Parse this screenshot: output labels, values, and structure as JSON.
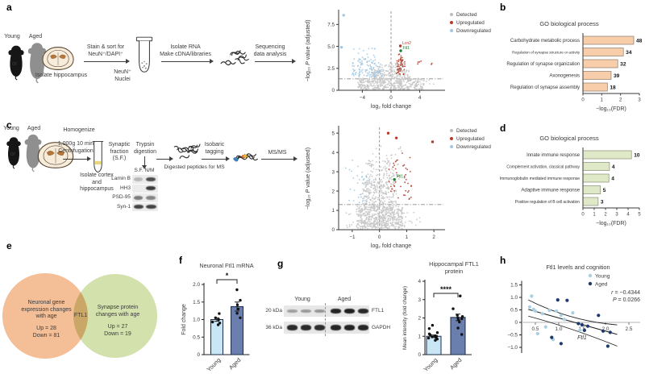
{
  "colors": {
    "detected": "#bdbdbd",
    "upregulated": "#b63b2a",
    "downregulated": "#9fc8e3",
    "highlight_green": "#1e7d34",
    "go_orange_fill": "#f8cda9",
    "go_green_fill": "#dfe9c8",
    "young_bar": "#c9e6f5",
    "aged_bar": "#6b7fae",
    "venn_left": "#f3b98e",
    "venn_right": "#cfdfa5"
  },
  "panel_a": {
    "label": "a",
    "young": "Young",
    "aged": "Aged",
    "or": "or",
    "isolate": "Isolate hippocampus",
    "sort_line1": "Stain & sort for",
    "sort_line2": "NeuN⁺/DAPI⁺",
    "nuclei_line1": "NeuN⁺",
    "nuclei_line2": "Nuclei",
    "rna_line1": "Isolate RNA",
    "rna_line2": "Make cDNA/libraries",
    "seq_line1": "Sequencing",
    "seq_line2": "data analysis"
  },
  "panel_b": {
    "label": "b"
  },
  "panel_c": {
    "label": "c",
    "young": "Young",
    "aged": "Aged",
    "or": "or",
    "homogenize": "Homogenize",
    "centrifuge_line1": "1,000g 10 min",
    "centrifuge_line2": "Centrifugation",
    "isolate_line1": "Isolate cortex",
    "isolate_line2": "and",
    "isolate_line3": "hippocampus",
    "synaptic_line1": "Synaptic",
    "synaptic_line2": "fraction",
    "synaptic_line3": "(S.F.)",
    "trypsin_line1": "Trypsin",
    "trypsin_line2": "digestion",
    "blot_header": "S.F. N/M",
    "blot_rows": [
      "Lamin B",
      "HH3",
      "PSD-95",
      "Syn-1"
    ],
    "digested": "Digested peptides for MS",
    "isobaric_line1": "Isobaric",
    "isobaric_line2": "tagging",
    "msms": "MS/MS"
  },
  "panel_d": {
    "label": "d"
  },
  "panel_e": {
    "label": "e"
  },
  "panel_f": {
    "label": "f"
  },
  "panel_g": {
    "label": "g",
    "blot": {
      "young": "Young",
      "aged": "Aged",
      "kda_1": "20 kDa",
      "kda_2": "36 kDa",
      "target_1": "FTL1",
      "target_2": "GAPDH"
    }
  },
  "panel_h": {
    "label": "h"
  },
  "chart_data": [
    {
      "id": "volcano-a",
      "type": "scatter",
      "variant": "volcano",
      "xlabel_parts": [
        "log₂ fold change"
      ],
      "ylabel_parts": [
        "−log₁₀ ",
        "P",
        " value (adjusted)"
      ],
      "xlim": [
        -7.3,
        7.3
      ],
      "ylim": [
        0,
        9.0
      ],
      "xticks": [
        -4,
        0,
        4
      ],
      "xtick_labels": [
        "−4",
        "0",
        "4"
      ],
      "yticks": [
        0,
        2.5,
        5,
        7.5
      ],
      "ytick_labels": [
        "0",
        "2.5",
        "5.0",
        "7.5"
      ],
      "vline": 0,
      "hline": 1.3,
      "legend": [
        {
          "label": "Detected",
          "color": "#bdbdbd"
        },
        {
          "label": "Upregulated",
          "color": "#b63b2a"
        },
        {
          "label": "Downregulated",
          "color": "#9fc8e3"
        }
      ],
      "highlights": [
        {
          "label": "Lcn2",
          "x": 1.3,
          "y": 5.05,
          "color": "#b63b2a"
        },
        {
          "label": "Ftl1",
          "x": 1.35,
          "y": 4.5,
          "color": "#1e7d34"
        },
        {
          "label": "",
          "x": -6.6,
          "y": 8.55,
          "color": "#9fc8e3"
        },
        {
          "label": "",
          "x": -6.9,
          "y": 4.9,
          "color": "#9fc8e3"
        }
      ],
      "clusters": [
        {
          "n": 420,
          "x": [
            -4.6,
            4.6
          ],
          "y": [
            0.06,
            1.35
          ],
          "color": "#c6c6c6",
          "seed": 1
        },
        {
          "n": 150,
          "x": [
            -2.7,
            2.7
          ],
          "y": [
            1.3,
            2.35
          ],
          "color": "#c6c6c6",
          "seed": 2
        },
        {
          "n": 45,
          "x": [
            -1.8,
            1.8
          ],
          "y": [
            2.3,
            3.1
          ],
          "color": "#c6c6c6",
          "seed": 3
        },
        {
          "n": 8,
          "x": [
            2.8,
            6.2
          ],
          "y": [
            0.4,
            1.3
          ],
          "color": "#c6c6c6",
          "seed": 4
        },
        {
          "n": 105,
          "x": [
            -5.5,
            -1.3
          ],
          "y": [
            1.5,
            3.6
          ],
          "color": "#9fc8e3",
          "seed": 5
        },
        {
          "n": 16,
          "x": [
            -5.2,
            -2.2
          ],
          "y": [
            3.5,
            4.8
          ],
          "color": "#9fc8e3",
          "seed": 6
        },
        {
          "n": 46,
          "x": [
            0.75,
            1.95
          ],
          "y": [
            1.8,
            3.5
          ],
          "color": "#b63b2a",
          "seed": 7
        },
        {
          "n": 7,
          "x": [
            0.95,
            1.7
          ],
          "y": [
            3.5,
            4.4
          ],
          "color": "#b63b2a",
          "seed": 8
        },
        {
          "n": 6,
          "x": [
            3.3,
            6.6
          ],
          "y": [
            2.3,
            3.4
          ],
          "color": "#b63b2a",
          "seed": 9
        }
      ]
    },
    {
      "id": "go-b",
      "type": "bar",
      "orientation": "horizontal",
      "title": "GO biological process",
      "categories": [
        "Carbohydrate metabolic process",
        "Regulation of synapse structure or activity",
        "Regulation of synapse organization",
        "Axonogenesis",
        "Regulation of synapse assembly"
      ],
      "values": [
        2.7,
        2.15,
        1.85,
        1.5,
        1.3
      ],
      "counts": [
        48,
        34,
        32,
        39,
        18
      ],
      "xlabel_parts": [
        "−log₁₀(FDR)"
      ],
      "xlim": [
        0,
        3
      ],
      "xticks": [
        0,
        1,
        2,
        3
      ],
      "bar_fill": "#f8cda9",
      "bar_stroke": "#8a7a6d"
    },
    {
      "id": "volcano-c",
      "type": "scatter",
      "variant": "volcano",
      "xlabel_parts": [
        "log₂ fold change"
      ],
      "ylabel_parts": [
        "−log₁₀ ",
        "P",
        " value (adjusted)"
      ],
      "xlim": [
        -1.5,
        2.35
      ],
      "ylim": [
        0,
        5.3
      ],
      "xticks": [
        -1,
        0,
        1,
        2
      ],
      "xtick_labels": [
        "−1",
        "0",
        "1",
        "2"
      ],
      "yticks": [
        0,
        1,
        2,
        3,
        4,
        5
      ],
      "ytick_labels": [
        "0",
        "1",
        "2",
        "3",
        "4",
        "5"
      ],
      "vline": 0,
      "hline": 1.3,
      "legend": [
        {
          "label": "Detected",
          "color": "#bdbdbd"
        },
        {
          "label": "Upregulated",
          "color": "#b63b2a"
        },
        {
          "label": "Downregulated",
          "color": "#9fc8e3"
        }
      ],
      "highlights": [
        {
          "label": "Ftl1",
          "x": 0.55,
          "y": 2.6,
          "color": "#1e7d34"
        },
        {
          "label": "",
          "x": 0.32,
          "y": 5.0,
          "color": "#b63b2a"
        },
        {
          "label": "",
          "x": 0.62,
          "y": 4.75,
          "color": "#b63b2a"
        },
        {
          "label": "",
          "x": 1.95,
          "y": 4.55,
          "color": "#b63b2a"
        }
      ],
      "clusters": [
        {
          "n": 520,
          "x": [
            -0.85,
            0.85
          ],
          "y": [
            0.05,
            1.3
          ],
          "color": "#c6c6c6",
          "seed": 21
        },
        {
          "n": 240,
          "x": [
            -0.62,
            0.62
          ],
          "y": [
            1.3,
            2.6
          ],
          "color": "#c6c6c6",
          "seed": 22
        },
        {
          "n": 90,
          "x": [
            -0.5,
            0.72
          ],
          "y": [
            2.6,
            3.6
          ],
          "color": "#c6c6c6",
          "seed": 23
        },
        {
          "n": 16,
          "x": [
            -0.35,
            0.85
          ],
          "y": [
            3.6,
            4.35
          ],
          "color": "#c6c6c6",
          "seed": 24
        },
        {
          "n": 70,
          "x": [
            -1.35,
            1.6
          ],
          "y": [
            0.08,
            0.95
          ],
          "color": "#c6c6c6",
          "seed": 25
        },
        {
          "n": 26,
          "x": [
            -1.15,
            -0.35
          ],
          "y": [
            1.4,
            3.0
          ],
          "color": "#9fc8e3",
          "seed": 26
        },
        {
          "n": 5,
          "x": [
            -1.25,
            -0.7
          ],
          "y": [
            3.0,
            4.15
          ],
          "color": "#9fc8e3",
          "seed": 27
        },
        {
          "n": 34,
          "x": [
            0.3,
            1.2
          ],
          "y": [
            1.5,
            3.3
          ],
          "color": "#b63b2a",
          "seed": 28
        },
        {
          "n": 9,
          "x": [
            0.35,
            1.15
          ],
          "y": [
            3.3,
            4.2
          ],
          "color": "#b63b2a",
          "seed": 29
        }
      ]
    },
    {
      "id": "go-d",
      "type": "bar",
      "orientation": "horizontal",
      "title": "GO biological process",
      "categories": [
        "Innate immune response",
        "Complement activation, classical pathway",
        "Immunoglobulin mediated immune response",
        "Adaptive immune response",
        "Positive regulation of B cell activation"
      ],
      "values": [
        4.3,
        2.35,
        2.3,
        1.55,
        1.35
      ],
      "counts": [
        10,
        4,
        4,
        5,
        3
      ],
      "xlabel_parts": [
        "−log₁₀(FDR)"
      ],
      "xlim": [
        0,
        5
      ],
      "xticks": [
        0,
        1,
        2,
        3,
        4,
        5
      ],
      "bar_fill": "#dfe9c8",
      "bar_stroke": "#868f75"
    },
    {
      "id": "venn-e",
      "type": "venn",
      "left": {
        "label_lines": [
          "Neuronal gene",
          "expression changes",
          "with age"
        ],
        "up": "Up = 28",
        "down": "Down = 81",
        "color": "#f3b98e"
      },
      "right": {
        "label_lines": [
          "Synapse protein",
          "changes with age"
        ],
        "up": "Up = 27",
        "down": "Down = 19",
        "color": "#cfdfa5"
      },
      "intersection_label": "FTL1"
    },
    {
      "id": "bar-f",
      "type": "bar",
      "orientation": "vertical",
      "title_lines": [
        "Neuronal Ftl1 mRNA"
      ],
      "ylabel": "Fold change",
      "categories": [
        "Young",
        "Aged"
      ],
      "values": [
        1.0,
        1.37
      ],
      "errors": [
        0.05,
        0.13
      ],
      "points": [
        [
          0.85,
          0.9,
          0.93,
          1.0,
          1.05,
          1.17
        ],
        [
          1.05,
          1.18,
          1.3,
          1.42,
          1.55,
          1.85
        ]
      ],
      "ylim": [
        0,
        2
      ],
      "yticks": [
        0,
        0.5,
        1,
        1.5,
        2
      ],
      "ytick_labels": [
        "0",
        "0.5",
        "1.0",
        "1.5",
        "2.0"
      ],
      "significance": "*",
      "bar_colors": [
        "#c9e6f5",
        "#6b7fae"
      ]
    },
    {
      "id": "bar-g",
      "type": "bar",
      "orientation": "vertical",
      "title_lines": [
        "Hippocampal FTL1",
        "protein"
      ],
      "ylabel": "Mean intensity (fold change)",
      "categories": [
        "Young",
        "Aged"
      ],
      "values": [
        1.0,
        2.03
      ],
      "errors": [
        0.07,
        0.18
      ],
      "points": [
        [
          0.78,
          0.85,
          0.9,
          0.93,
          0.97,
          1.0,
          1.03,
          1.08,
          1.13,
          1.2,
          1.42,
          1.6
        ],
        [
          1.1,
          1.45,
          1.78,
          1.9,
          1.95,
          2.0,
          2.08,
          2.15,
          2.5,
          3.2
        ]
      ],
      "ylim": [
        0,
        4
      ],
      "yticks": [
        0,
        1,
        2,
        3,
        4
      ],
      "ytick_labels": [
        "0",
        "1",
        "2",
        "3",
        "4"
      ],
      "significance": "****",
      "bar_colors": [
        "#c9e6f5",
        "#6b7fae"
      ]
    },
    {
      "id": "scatter-h",
      "type": "scatter",
      "title": "Ftl1 levels and cognition",
      "xlabel": "Ftl1",
      "ylabel": "Cognitive performance score",
      "xlim": [
        0.3,
        2.6
      ],
      "ylim": [
        -1.2,
        1.6
      ],
      "xticks": [
        0.5,
        1,
        1.5,
        2,
        2.5
      ],
      "xtick_labels": [
        "0.5",
        "1.0",
        "1.5",
        "2.0",
        "2.5"
      ],
      "yticks": [
        -1,
        -0.5,
        0,
        0.5,
        1,
        1.5
      ],
      "ytick_labels": [
        "−1.0",
        "−0.5",
        "0",
        "0.5",
        "1.0",
        "1.5"
      ],
      "series": [
        {
          "name": "Young",
          "color": "#a9cfe2",
          "points": [
            [
              0.38,
              0.62
            ],
            [
              0.42,
              1.05
            ],
            [
              0.46,
              0.52
            ],
            [
              0.5,
              0.45
            ],
            [
              0.55,
              -0.45
            ],
            [
              0.65,
              0.35
            ],
            [
              0.72,
              -0.18
            ],
            [
              0.8,
              0.48
            ],
            [
              0.88,
              -0.68
            ],
            [
              0.95,
              0.45
            ],
            [
              1.05,
              0.28
            ],
            [
              1.12,
              0.12
            ],
            [
              1.3,
              0.38
            ],
            [
              1.45,
              -0.32
            ]
          ]
        },
        {
          "name": "Aged",
          "color": "#1d3a6e",
          "points": [
            [
              0.85,
              -0.6
            ],
            [
              0.98,
              0.9
            ],
            [
              1.05,
              -0.85
            ],
            [
              1.18,
              0.88
            ],
            [
              1.42,
              -0.05
            ],
            [
              1.5,
              -0.1
            ],
            [
              1.55,
              -0.32
            ],
            [
              1.62,
              -0.15
            ],
            [
              1.85,
              0.28
            ],
            [
              1.95,
              -0.35
            ],
            [
              2.05,
              -0.95
            ],
            [
              2.1,
              -0.4
            ]
          ]
        }
      ],
      "correlation_r_parts": [
        "r",
        " = −0.4344"
      ],
      "p_value_parts": [
        "P",
        " = 0.0266"
      ],
      "fit": {
        "line": [
          [
            0.35,
            0.52
          ],
          [
            2.25,
            -0.48
          ]
        ],
        "upper": [
          [
            0.35,
            0.9
          ],
          [
            1.25,
            0.05
          ],
          [
            2.25,
            -0.1
          ]
        ],
        "lower": [
          [
            0.35,
            0.25
          ],
          [
            1.25,
            -0.2
          ],
          [
            2.25,
            -0.95
          ]
        ]
      }
    }
  ]
}
